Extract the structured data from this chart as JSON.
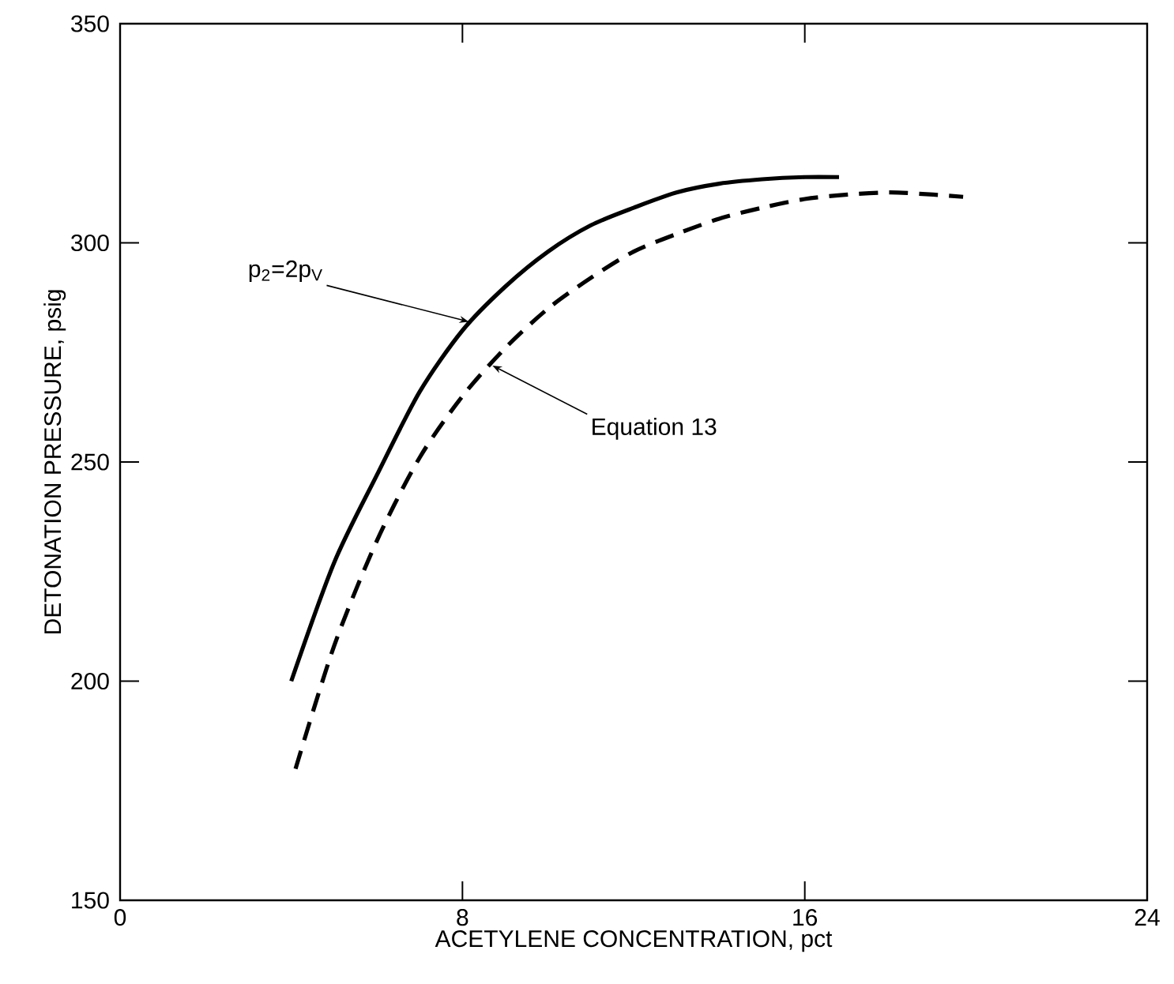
{
  "chart_data": {
    "type": "line",
    "xlabel": "ACETYLENE CONCENTRATION, pct",
    "ylabel": "DETONATION PRESSURE, psig",
    "xlim": [
      0,
      24
    ],
    "xticks": [
      0,
      8,
      16,
      24
    ],
    "ylim": [
      150,
      350
    ],
    "yticks": [
      150,
      200,
      250,
      300,
      350
    ],
    "grid": false,
    "marker": "none",
    "series": [
      {
        "color": "#000000",
        "line_style": "solid",
        "x": [
          4,
          5,
          6,
          7,
          8,
          9,
          10,
          11,
          12,
          13,
          14,
          15,
          16,
          16.8
        ],
        "values": [
          200,
          227,
          247,
          266,
          280,
          290,
          298,
          304,
          308,
          311.5,
          313.5,
          314.5,
          315,
          315
        ]
      },
      {
        "color": "#000000",
        "line_style": "dashed",
        "x": [
          4.1,
          5,
          6,
          7,
          8,
          9,
          10,
          11,
          12,
          13,
          14,
          15,
          16,
          17,
          18,
          19,
          19.7
        ],
        "values": [
          180,
          208,
          232,
          251,
          265,
          276,
          285,
          292,
          298,
          302,
          305.5,
          308,
          310,
          311,
          311.5,
          311,
          310.5
        ]
      }
    ],
    "annotations": [
      {
        "text": "p$_{2}$=2p$_{V}$",
        "x": 8.15,
        "y": 282
      },
      {
        "text": "Equation 13",
        "x": 8.7,
        "y": 272
      }
    ]
  }
}
